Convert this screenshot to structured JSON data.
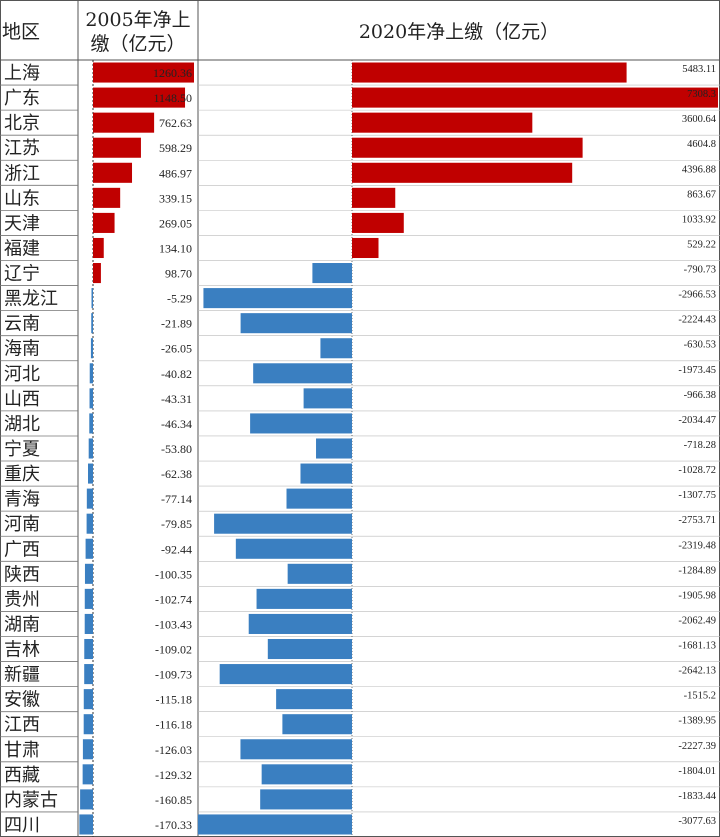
{
  "chart_data": {
    "type": "table",
    "header": {
      "region": "地区",
      "col2005_line1": "2005年净上",
      "col2005_line2": "缴（亿元）",
      "col2020": "2020年净上缴（亿元）"
    },
    "colors": {
      "positive": "#c00000",
      "negative": "#3a7fc1"
    },
    "rows": [
      {
        "region": "上海",
        "v2005": "1260.36",
        "v2020": "5483.11"
      },
      {
        "region": "广东",
        "v2005": "1148.50",
        "v2020": "7308.3"
      },
      {
        "region": "北京",
        "v2005": "762.63",
        "v2020": "3600.64"
      },
      {
        "region": "江苏",
        "v2005": "598.29",
        "v2020": "4604.8"
      },
      {
        "region": "浙江",
        "v2005": "486.97",
        "v2020": "4396.88"
      },
      {
        "region": "山东",
        "v2005": "339.15",
        "v2020": "863.67"
      },
      {
        "region": "天津",
        "v2005": "269.05",
        "v2020": "1033.92"
      },
      {
        "region": "福建",
        "v2005": "134.10",
        "v2020": "529.22"
      },
      {
        "region": "辽宁",
        "v2005": "98.70",
        "v2020": "-790.73"
      },
      {
        "region": "黑龙江",
        "v2005": "-5.29",
        "v2020": "-2966.53"
      },
      {
        "region": "云南",
        "v2005": "-21.89",
        "v2020": "-2224.43"
      },
      {
        "region": "海南",
        "v2005": "-26.05",
        "v2020": "-630.53"
      },
      {
        "region": "河北",
        "v2005": "-40.82",
        "v2020": "-1973.45"
      },
      {
        "region": "山西",
        "v2005": "-43.31",
        "v2020": "-966.38"
      },
      {
        "region": "湖北",
        "v2005": "-46.34",
        "v2020": "-2034.47"
      },
      {
        "region": "宁夏",
        "v2005": "-53.80",
        "v2020": "-718.28"
      },
      {
        "region": "重庆",
        "v2005": "-62.38",
        "v2020": "-1028.72"
      },
      {
        "region": "青海",
        "v2005": "-77.14",
        "v2020": "-1307.75"
      },
      {
        "region": "河南",
        "v2005": "-79.85",
        "v2020": "-2753.71"
      },
      {
        "region": "广西",
        "v2005": "-92.44",
        "v2020": "-2319.48"
      },
      {
        "region": "陕西",
        "v2005": "-100.35",
        "v2020": "-1284.89"
      },
      {
        "region": "贵州",
        "v2005": "-102.74",
        "v2020": "-1905.98"
      },
      {
        "region": "湖南",
        "v2005": "-103.43",
        "v2020": "-2062.49"
      },
      {
        "region": "吉林",
        "v2005": "-109.02",
        "v2020": "-1681.13"
      },
      {
        "region": "新疆",
        "v2005": "-109.73",
        "v2020": "-2642.13"
      },
      {
        "region": "安徽",
        "v2005": "-115.18",
        "v2020": "-1515.2"
      },
      {
        "region": "江西",
        "v2005": "-116.18",
        "v2020": "-1389.95"
      },
      {
        "region": "甘肃",
        "v2005": "-126.03",
        "v2020": "-2227.39"
      },
      {
        "region": "西藏",
        "v2005": "-129.32",
        "v2020": "-1804.01"
      },
      {
        "region": "内蒙古",
        "v2005": "-160.85",
        "v2020": "-1833.44"
      },
      {
        "region": "四川",
        "v2005": "-170.33",
        "v2020": "-3077.63"
      }
    ]
  }
}
